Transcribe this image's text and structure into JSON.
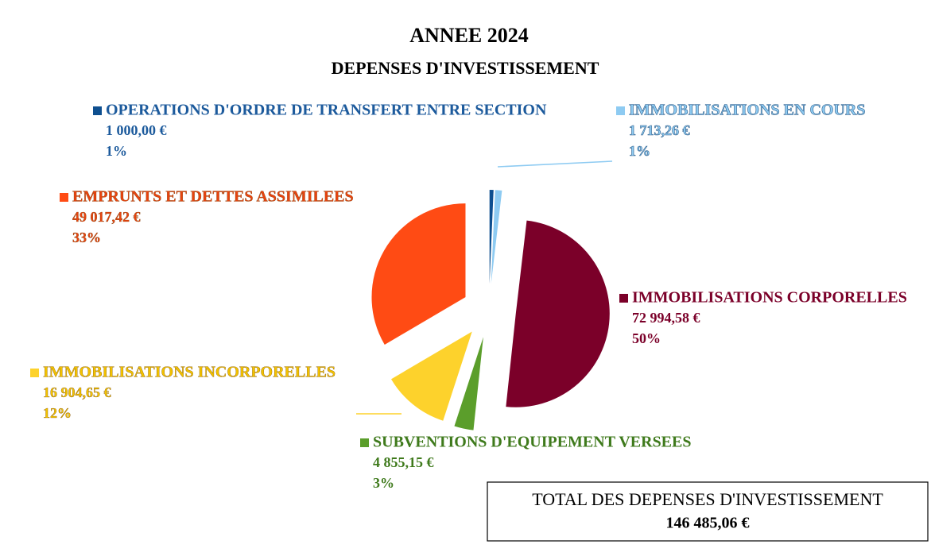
{
  "chart_data": {
    "type": "pie",
    "title": "ANNEE 2024",
    "subtitle": "DEPENSES D'INVESTISSEMENT",
    "categories": [
      "OPERATIONS D'ORDRE DE TRANSFERT ENTRE SECTION",
      "IMMOBILISATIONS EN COURS",
      "IMMOBILISATIONS CORPORELLES",
      "SUBVENTIONS D'EQUIPEMENT VERSEES",
      "IMMOBILISATIONS INCORPORELLES",
      "EMPRUNTS ET DETTES ASSIMILEES"
    ],
    "values": [
      1000.0,
      1713.26,
      72994.58,
      4855.15,
      16904.65,
      49017.42
    ],
    "value_labels": [
      "1 000,00 €",
      "1 713,26 €",
      "72 994,58 €",
      "4 855,15 €",
      "16 904,65 €",
      "49 017,42 €"
    ],
    "percent_labels": [
      "1%",
      "1%",
      "50%",
      "3%",
      "12%",
      "33%"
    ],
    "colors": [
      "#0e4f8f",
      "#8ecbf2",
      "#7b0029",
      "#5b9e2b",
      "#fdd22c",
      "#ff4b14"
    ],
    "label_colors": [
      "#1c5a9c",
      "#8ecbf2",
      "#7b0029",
      "#3f7a1c",
      "#f2c200",
      "#e8430f"
    ],
    "total_label": "TOTAL DES DEPENSES D'INVESTISSEMENT",
    "total": "146 485,06 €"
  }
}
